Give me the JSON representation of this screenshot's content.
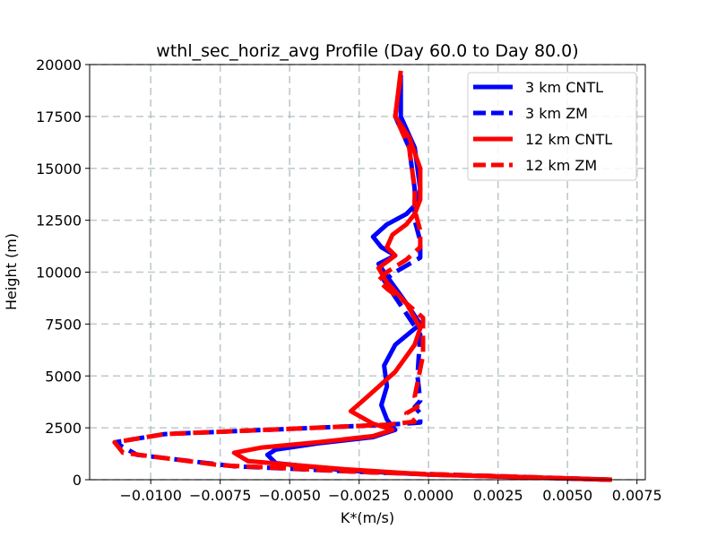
{
  "chart_data": {
    "type": "line",
    "title": "wthl_sec_horiz_avg Profile (Day 60.0 to Day 80.0)",
    "xlabel": "K*(m/s)",
    "ylabel": "Height (m)",
    "xlim": [
      -0.0122,
      0.0078
    ],
    "ylim": [
      0,
      20000
    ],
    "xticks": [
      -0.01,
      -0.0075,
      -0.005,
      -0.0025,
      0.0,
      0.0025,
      0.005,
      0.0075
    ],
    "xtick_labels": [
      "−0.0100",
      "−0.0075",
      "−0.0050",
      "−0.0025",
      "0.0000",
      "0.0025",
      "0.0050",
      "0.0075"
    ],
    "yticks": [
      0,
      2500,
      5000,
      7500,
      10000,
      12500,
      15000,
      17500,
      20000
    ],
    "ytick_labels": [
      "0",
      "2500",
      "5000",
      "7500",
      "10000",
      "12500",
      "15000",
      "17500",
      "20000"
    ],
    "grid": true,
    "legend_position": "top-right",
    "series": [
      {
        "name": "3 km CNTL",
        "color": "#0000ff",
        "style": "solid",
        "points": [
          [
            0.0065,
            0
          ],
          [
            0.004,
            100
          ],
          [
            0.0,
            250
          ],
          [
            -0.003,
            450
          ],
          [
            -0.0055,
            800
          ],
          [
            -0.0058,
            1200
          ],
          [
            -0.0055,
            1450
          ],
          [
            -0.004,
            1750
          ],
          [
            -0.002,
            2050
          ],
          [
            -0.0012,
            2400
          ],
          [
            -0.0015,
            2900
          ],
          [
            -0.0017,
            3600
          ],
          [
            -0.0015,
            4500
          ],
          [
            -0.0016,
            5500
          ],
          [
            -0.0012,
            6500
          ],
          [
            -0.0003,
            7500
          ],
          [
            -0.0008,
            8500
          ],
          [
            -0.0015,
            9800
          ],
          [
            -0.0018,
            10400
          ],
          [
            -0.0012,
            10800
          ],
          [
            -0.0017,
            11200
          ],
          [
            -0.002,
            11700
          ],
          [
            -0.0015,
            12300
          ],
          [
            -0.0008,
            12800
          ],
          [
            -0.0005,
            13200
          ],
          [
            -0.0003,
            14000
          ],
          [
            -0.0005,
            16000
          ],
          [
            -0.001,
            17500
          ],
          [
            -0.001,
            19500
          ]
        ]
      },
      {
        "name": "3 km ZM",
        "color": "#0000ff",
        "style": "dashed",
        "points": [
          [
            0.0065,
            0
          ],
          [
            0.003,
            150
          ],
          [
            -0.002,
            350
          ],
          [
            -0.007,
            650
          ],
          [
            -0.0105,
            1200
          ],
          [
            -0.0113,
            1800
          ],
          [
            -0.0095,
            2200
          ],
          [
            -0.005,
            2450
          ],
          [
            -0.0015,
            2650
          ],
          [
            -0.0003,
            2750
          ],
          [
            -0.0003,
            3200
          ],
          [
            -0.0005,
            3500
          ],
          [
            -0.0003,
            3800
          ],
          [
            -0.0004,
            5000
          ],
          [
            -0.0003,
            7000
          ],
          [
            -0.0008,
            8000
          ],
          [
            -0.0012,
            8800
          ],
          [
            -0.0016,
            9600
          ],
          [
            -0.0012,
            10000
          ],
          [
            -0.0003,
            10700
          ],
          [
            -0.0003,
            11500
          ],
          [
            -0.0005,
            12500
          ],
          [
            -0.0005,
            14000
          ],
          [
            -0.0007,
            16000
          ],
          [
            -0.0012,
            17500
          ],
          [
            -0.001,
            19500
          ]
        ]
      },
      {
        "name": "12 km CNTL",
        "color": "#ff0000",
        "style": "solid",
        "points": [
          [
            0.0066,
            0
          ],
          [
            0.004,
            100
          ],
          [
            0.0,
            250
          ],
          [
            -0.003,
            500
          ],
          [
            -0.0065,
            900
          ],
          [
            -0.007,
            1300
          ],
          [
            -0.006,
            1550
          ],
          [
            -0.004,
            1800
          ],
          [
            -0.002,
            2100
          ],
          [
            -0.0013,
            2400
          ],
          [
            -0.002,
            2700
          ],
          [
            -0.0028,
            3300
          ],
          [
            -0.0022,
            4000
          ],
          [
            -0.0012,
            5200
          ],
          [
            -0.0005,
            6500
          ],
          [
            -0.0003,
            7300
          ],
          [
            -0.0008,
            8500
          ],
          [
            -0.0015,
            9500
          ],
          [
            -0.0018,
            10200
          ],
          [
            -0.0012,
            10800
          ],
          [
            -0.0015,
            11200
          ],
          [
            -0.0013,
            11800
          ],
          [
            -0.0008,
            12300
          ],
          [
            -0.0005,
            12800
          ],
          [
            -0.0003,
            13500
          ],
          [
            -0.0003,
            15000
          ],
          [
            -0.0007,
            16500
          ],
          [
            -0.0012,
            17500
          ],
          [
            -0.001,
            19700
          ]
        ]
      },
      {
        "name": "12 km ZM",
        "color": "#ff0000",
        "style": "dashed",
        "points": [
          [
            0.0066,
            0
          ],
          [
            0.003,
            150
          ],
          [
            -0.002,
            350
          ],
          [
            -0.0075,
            700
          ],
          [
            -0.011,
            1300
          ],
          [
            -0.0113,
            1800
          ],
          [
            -0.0095,
            2200
          ],
          [
            -0.005,
            2450
          ],
          [
            -0.0015,
            2650
          ],
          [
            -0.0005,
            2800
          ],
          [
            -0.0008,
            3200
          ],
          [
            -0.0004,
            3500
          ],
          [
            -0.0005,
            4000
          ],
          [
            -0.0002,
            6000
          ],
          [
            -0.0002,
            7800
          ],
          [
            -0.0008,
            8500
          ],
          [
            -0.0015,
            9200
          ],
          [
            -0.0018,
            9600
          ],
          [
            -0.0015,
            10000
          ],
          [
            -0.0008,
            10600
          ],
          [
            -0.0003,
            11200
          ],
          [
            -0.0003,
            12000
          ],
          [
            -0.0005,
            13000
          ],
          [
            -0.0005,
            14000
          ],
          [
            -0.0007,
            16000
          ],
          [
            -0.0012,
            17500
          ],
          [
            -0.001,
            19500
          ]
        ]
      }
    ]
  }
}
